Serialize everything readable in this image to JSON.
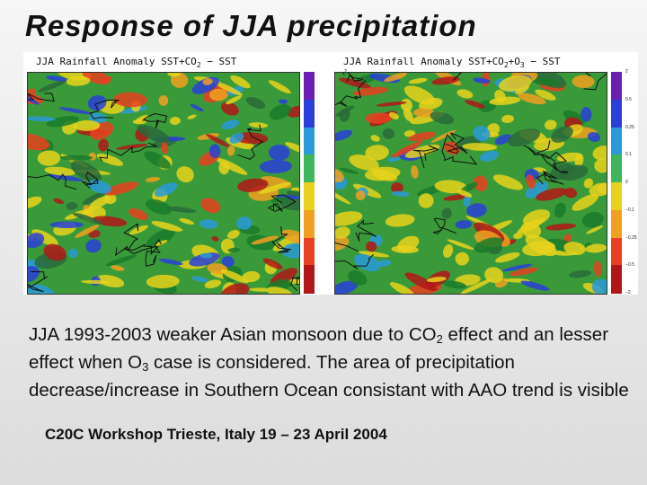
{
  "title": "Response of JJA precipitation",
  "figure": {
    "panels": [
      {
        "title": "JJA Rainfall Anomaly SST+CO2 − SST",
        "title_parts": [
          "JJA Rainfall Anomaly SST+CO",
          "2",
          " − SST"
        ]
      },
      {
        "title": "JJA Rainfall Anomaly SST+CO2+O3 − SST",
        "title_parts": [
          "JJA Rainfall Anomaly SST+CO",
          "2",
          "+O",
          "3",
          " − SST"
        ]
      }
    ],
    "colorbar": {
      "ticks": [
        "2",
        "0.5",
        "0.25",
        "0.1",
        "0",
        "−0.1",
        "−0.25",
        "−0.5",
        "−2"
      ],
      "colors": [
        "#6a1fb0",
        "#2a3fd8",
        "#2a9ad8",
        "#3fb65a",
        "#e8d21c",
        "#f0a020",
        "#e84020",
        "#b01818"
      ]
    }
  },
  "body_text": {
    "part1": "JJA 1993-2003 weaker Asian monsoon due to CO",
    "sub1": "2",
    "part2": " effect and an lesser effect when O",
    "sub2": "3",
    "part3": " case is considered. The area of precipitation decrease/increase in Southern Ocean consistant with AAO trend is visible"
  },
  "footer": "C20C Workshop Trieste, Italy 19 – 23 April 2004"
}
